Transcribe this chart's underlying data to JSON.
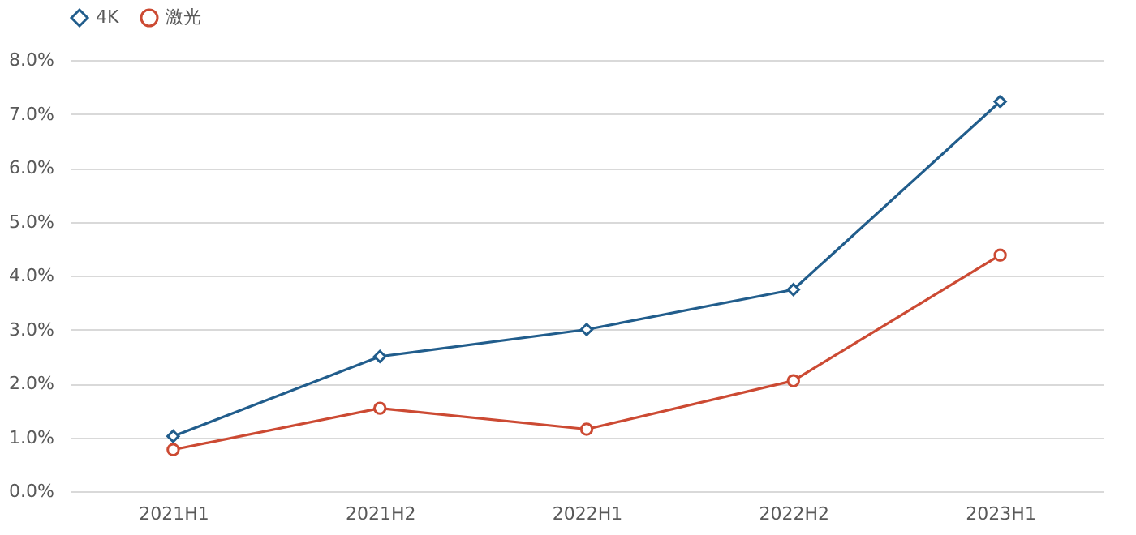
{
  "chart_data": {
    "type": "line",
    "categories": [
      "2021H1",
      "2021H2",
      "2022H1",
      "2022H2",
      "2023H1"
    ],
    "series": [
      {
        "name": "4K",
        "color": "#215d8c",
        "values": [
          1.02,
          2.5,
          3.0,
          3.74,
          7.23
        ],
        "marker": "diamond"
      },
      {
        "name": "激光",
        "color": "#cc4a33",
        "values": [
          0.77,
          1.54,
          1.15,
          2.05,
          4.38
        ],
        "marker": "circle"
      }
    ],
    "ylim": [
      0,
      8
    ],
    "yticks": [
      {
        "value": 0,
        "label": "0.0%"
      },
      {
        "value": 1,
        "label": "1.0%"
      },
      {
        "value": 2,
        "label": "2.0%"
      },
      {
        "value": 3,
        "label": "3.0%"
      },
      {
        "value": 4,
        "label": "4.0%"
      },
      {
        "value": 5,
        "label": "5.0%"
      },
      {
        "value": 6,
        "label": "6.0%"
      },
      {
        "value": 7,
        "label": "7.0%"
      },
      {
        "value": 8,
        "label": "8.0%"
      }
    ],
    "grid": "y",
    "legend": "top",
    "line_style": "solid"
  }
}
